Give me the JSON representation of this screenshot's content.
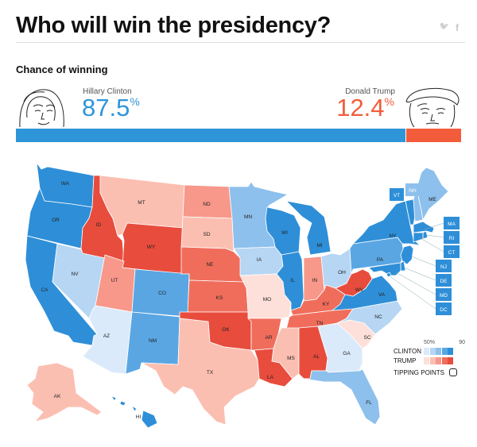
{
  "header": {
    "title": "Who will win the presidency?",
    "social": [
      "twitter-icon",
      "facebook-icon"
    ],
    "twitter_glyph": "🐦",
    "facebook_glyph": "f"
  },
  "subhead": "Chance of winning",
  "clinton": {
    "name": "Hillary Clinton",
    "pct": "87.5",
    "pct_sign": "%",
    "color": "#2e95d9"
  },
  "trump": {
    "name": "Donald Trump",
    "pct": "12.4",
    "pct_sign": "%",
    "color": "#f25c3b"
  },
  "probability_bar": {
    "clinton": 87.5,
    "trump": 12.4,
    "other": 0.1
  },
  "legend": {
    "tick_low": "50%",
    "tick_high": "90",
    "clinton_label": "CLINTON",
    "trump_label": "TRUMP",
    "tipping_label": "TIPPING POINTS",
    "clinton_scale": [
      "#dbeafa",
      "#b6d6f3",
      "#8dc0ec",
      "#5aa6e3",
      "#2e8fd8"
    ],
    "trump_scale": [
      "#fde0d9",
      "#fbbfb1",
      "#f7988a",
      "#f06d5c",
      "#e84c3d"
    ]
  },
  "states": [
    {
      "abbr": "WA",
      "color": "#2e8fd8"
    },
    {
      "abbr": "OR",
      "color": "#2e8fd8"
    },
    {
      "abbr": "CA",
      "color": "#2e8fd8"
    },
    {
      "abbr": "NV",
      "color": "#b6d6f3"
    },
    {
      "abbr": "ID",
      "color": "#e84c3d"
    },
    {
      "abbr": "MT",
      "color": "#fbbfb1"
    },
    {
      "abbr": "WY",
      "color": "#e84c3d"
    },
    {
      "abbr": "UT",
      "color": "#f7988a"
    },
    {
      "abbr": "AZ",
      "color": "#dbeafa"
    },
    {
      "abbr": "CO",
      "color": "#5aa6e3"
    },
    {
      "abbr": "NM",
      "color": "#5aa6e3"
    },
    {
      "abbr": "ND",
      "color": "#f7988a"
    },
    {
      "abbr": "SD",
      "color": "#fbbfb1"
    },
    {
      "abbr": "NE",
      "color": "#f06d5c"
    },
    {
      "abbr": "KS",
      "color": "#f06d5c"
    },
    {
      "abbr": "OK",
      "color": "#e84c3d"
    },
    {
      "abbr": "TX",
      "color": "#fbbfb1"
    },
    {
      "abbr": "MN",
      "color": "#8dc0ec"
    },
    {
      "abbr": "IA",
      "color": "#b6d6f3"
    },
    {
      "abbr": "MO",
      "color": "#fde0d9"
    },
    {
      "abbr": "AR",
      "color": "#f06d5c"
    },
    {
      "abbr": "LA",
      "color": "#e84c3d"
    },
    {
      "abbr": "WI",
      "color": "#2e8fd8"
    },
    {
      "abbr": "IL",
      "color": "#2e8fd8"
    },
    {
      "abbr": "MI",
      "color": "#2e8fd8"
    },
    {
      "abbr": "IN",
      "color": "#f7988a"
    },
    {
      "abbr": "OH",
      "color": "#b6d6f3"
    },
    {
      "abbr": "KY",
      "color": "#f06d5c"
    },
    {
      "abbr": "TN",
      "color": "#f06d5c"
    },
    {
      "abbr": "MS",
      "color": "#fbbfb1"
    },
    {
      "abbr": "AL",
      "color": "#e84c3d"
    },
    {
      "abbr": "GA",
      "color": "#dbeafa"
    },
    {
      "abbr": "FL",
      "color": "#8dc0ec"
    },
    {
      "abbr": "SC",
      "color": "#fde0d9"
    },
    {
      "abbr": "NC",
      "color": "#b6d6f3"
    },
    {
      "abbr": "VA",
      "color": "#2e8fd8"
    },
    {
      "abbr": "WV",
      "color": "#e84c3d"
    },
    {
      "abbr": "PA",
      "color": "#5aa6e3"
    },
    {
      "abbr": "NY",
      "color": "#2e8fd8"
    },
    {
      "abbr": "VT",
      "color": "#2e8fd8"
    },
    {
      "abbr": "NH",
      "color": "#8dc0ec"
    },
    {
      "abbr": "ME",
      "color": "#8dc0ec"
    },
    {
      "abbr": "MA",
      "color": "#2e8fd8"
    },
    {
      "abbr": "RI",
      "color": "#2e8fd8"
    },
    {
      "abbr": "CT",
      "color": "#2e8fd8"
    },
    {
      "abbr": "NJ",
      "color": "#2e8fd8"
    },
    {
      "abbr": "DE",
      "color": "#2e8fd8"
    },
    {
      "abbr": "MD",
      "color": "#2e8fd8"
    },
    {
      "abbr": "DC",
      "color": "#2e8fd8"
    },
    {
      "abbr": "AK",
      "color": "#fbbfb1"
    },
    {
      "abbr": "HI",
      "color": "#2e8fd8"
    }
  ]
}
